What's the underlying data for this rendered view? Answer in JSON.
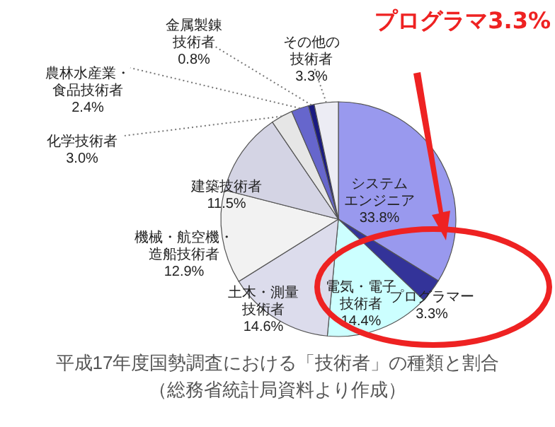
{
  "chart_data": {
    "type": "pie",
    "title": "平成17年度国勢調査における「技術者」の種類と割合",
    "subtitle": "（総務省統計局資料より作成）",
    "categories": [
      "システムエンジニア",
      "プログラマー",
      "電気・電子技術者",
      "土木・測量技術者",
      "機械・航空機・造船技術者",
      "建築技術者",
      "化学技術者",
      "農林水産業・食品技術者",
      "金属製錬技術者",
      "その他の技術者"
    ],
    "values": [
      33.8,
      3.3,
      14.4,
      14.6,
      12.9,
      11.5,
      3.0,
      2.4,
      0.8,
      3.3
    ],
    "value_labels": [
      "33.8%",
      "3.3%",
      "14.4%",
      "14.6%",
      "12.9%",
      "11.5%",
      "3.0%",
      "2.4%",
      "0.8%",
      "3.3%"
    ],
    "colors": [
      "#9999ee",
      "#333399",
      "#ccffff",
      "#dcdcec",
      "#f2f2f2",
      "#d4d4e4",
      "#e6e6e6",
      "#6666cc",
      "#1a1a80",
      "#ececf4"
    ],
    "annotations": [
      "プログラマ3.3%"
    ],
    "legend": false
  }
}
